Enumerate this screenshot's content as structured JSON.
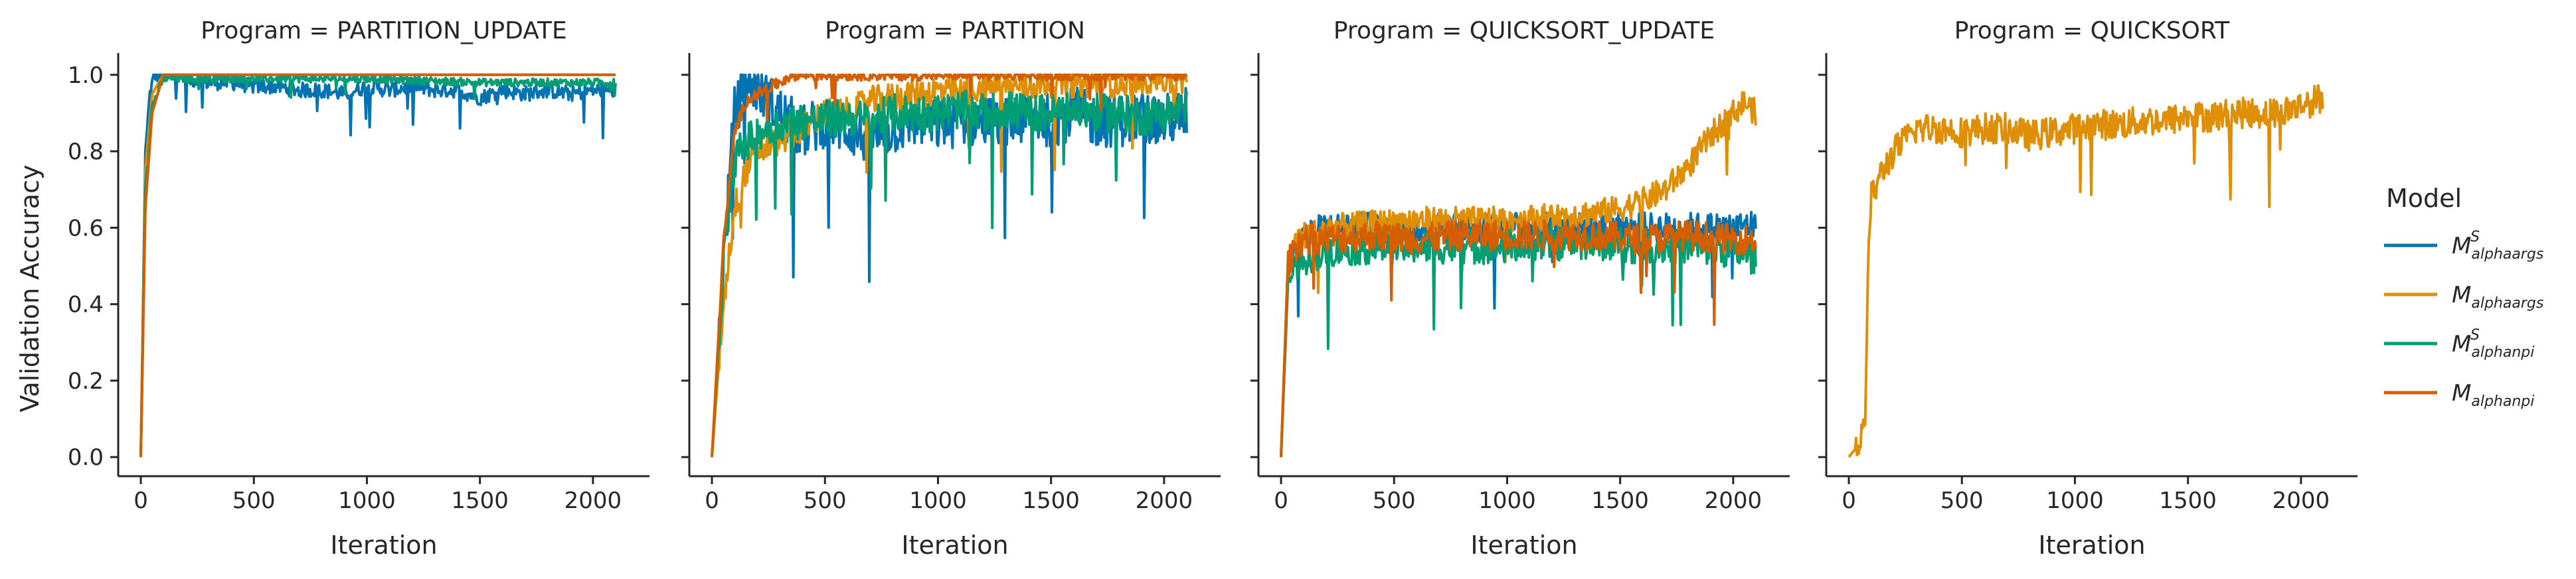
{
  "chart_data": {
    "type": "line",
    "ylabel": "Validation Accuracy",
    "xlabel": "Iteration",
    "xlim": [
      -100,
      2250
    ],
    "ylim": [
      -0.05,
      1.05
    ],
    "xticks": [
      0,
      500,
      1000,
      1500,
      2000
    ],
    "yticks": [
      "0.0",
      "0.2",
      "0.4",
      "0.6",
      "0.8",
      "1.0"
    ],
    "legend": {
      "title": "Model",
      "placement": "right",
      "entries": [
        {
          "main": "M",
          "sub": "alphaargs",
          "sup": "S",
          "color": "#0173b2"
        },
        {
          "main": "M",
          "sub": "alphaargs",
          "sup": "",
          "color": "#de8f05"
        },
        {
          "main": "M",
          "sub": "alphanpi",
          "sup": "S",
          "color": "#029e73"
        },
        {
          "main": "M",
          "sub": "alphanpi",
          "sup": "",
          "color": "#d55e00"
        }
      ]
    },
    "panels": [
      {
        "title": "Program = PARTITION_UPDATE",
        "series": [
          {
            "name": "M^S_alphaargs",
            "color": "#0173b2",
            "x": [
              0,
              20,
              40,
              60,
              100,
              200,
              300,
              400,
              500,
              600,
              700,
              800,
              900,
              1000,
              1100,
              1200,
              1300,
              1400,
              1500,
              1600,
              1700,
              1800,
              1900,
              2000,
              2100
            ],
            "y": [
              0.0,
              0.8,
              0.95,
              1.0,
              1.0,
              0.99,
              0.98,
              0.98,
              0.97,
              0.97,
              0.96,
              0.96,
              0.95,
              0.97,
              0.96,
              0.97,
              0.96,
              0.96,
              0.94,
              0.96,
              0.95,
              0.96,
              0.95,
              0.96,
              0.96
            ],
            "noise": 0.02
          },
          {
            "name": "M_alphaargs",
            "color": "#de8f05",
            "x": [
              0,
              20,
              50,
              100,
              200,
              2100
            ],
            "y": [
              0.0,
              0.75,
              0.95,
              1.0,
              1.0,
              1.0
            ],
            "noise": 0.0
          },
          {
            "name": "M^S_alphanpi",
            "color": "#029e73",
            "x": [
              0,
              20,
              50,
              100,
              200,
              500,
              1000,
              1500,
              2100
            ],
            "y": [
              0.0,
              0.7,
              0.92,
              0.99,
              0.99,
              0.99,
              0.99,
              0.98,
              0.98
            ],
            "noise": 0.01
          },
          {
            "name": "M_alphanpi",
            "color": "#d55e00",
            "x": [
              0,
              20,
              50,
              100,
              200,
              2100
            ],
            "y": [
              0.0,
              0.65,
              0.9,
              1.0,
              1.0,
              1.0
            ],
            "noise": 0.0
          }
        ]
      },
      {
        "title": "Program = PARTITION",
        "series": [
          {
            "name": "M^S_alphaargs",
            "color": "#0173b2",
            "x": [
              0,
              50,
              100,
              150,
              200,
              300,
              400,
              500,
              600,
              700,
              800,
              900,
              1000,
              1100,
              1200,
              1300,
              1400,
              1500,
              1600,
              1700,
              1800,
              1900,
              2000,
              2100
            ],
            "y": [
              0.0,
              0.5,
              0.9,
              0.98,
              0.97,
              0.9,
              0.85,
              0.88,
              0.86,
              0.83,
              0.86,
              0.88,
              0.87,
              0.88,
              0.88,
              0.87,
              0.89,
              0.88,
              0.9,
              0.88,
              0.88,
              0.89,
              0.88,
              0.9
            ],
            "noise": 0.07
          },
          {
            "name": "M_alphaargs",
            "color": "#de8f05",
            "x": [
              0,
              50,
              100,
              150,
              200,
              300,
              400,
              500,
              600,
              700,
              800,
              900,
              1000,
              1100,
              1200,
              1300,
              1400,
              1500,
              1600,
              1700,
              1800,
              1900,
              2000,
              2100
            ],
            "y": [
              0.0,
              0.4,
              0.65,
              0.75,
              0.8,
              0.83,
              0.86,
              0.9,
              0.9,
              0.93,
              0.94,
              0.95,
              0.96,
              0.95,
              0.97,
              0.97,
              0.97,
              0.98,
              0.98,
              0.98,
              0.98,
              0.99,
              0.99,
              0.97
            ],
            "noise": 0.04
          },
          {
            "name": "M^S_alphanpi",
            "color": "#029e73",
            "x": [
              0,
              50,
              100,
              150,
              200,
              300,
              400,
              500,
              600,
              700,
              800,
              900,
              1000,
              1100,
              1200,
              1300,
              1400,
              1500,
              1600,
              1700,
              1800,
              1900,
              2000,
              2100
            ],
            "y": [
              0.0,
              0.5,
              0.78,
              0.82,
              0.85,
              0.87,
              0.88,
              0.88,
              0.89,
              0.88,
              0.9,
              0.9,
              0.9,
              0.91,
              0.9,
              0.91,
              0.9,
              0.9,
              0.91,
              0.9,
              0.9,
              0.89,
              0.9,
              0.91
            ],
            "noise": 0.05
          },
          {
            "name": "M_alphanpi",
            "color": "#d55e00",
            "x": [
              0,
              50,
              100,
              150,
              200,
              300,
              350,
              2100
            ],
            "y": [
              0.0,
              0.55,
              0.85,
              0.93,
              0.95,
              0.98,
              1.0,
              1.0
            ],
            "noise": 0.015
          }
        ]
      },
      {
        "title": "Program = QUICKSORT_UPDATE",
        "series": [
          {
            "name": "M^S_alphaargs",
            "color": "#0173b2",
            "x": [
              0,
              30,
              60,
              100,
              200,
              400,
              600,
              800,
              1000,
              1200,
              1400,
              1600,
              1800,
              2000,
              2100
            ],
            "y": [
              0.0,
              0.5,
              0.58,
              0.58,
              0.6,
              0.6,
              0.6,
              0.6,
              0.6,
              0.6,
              0.6,
              0.6,
              0.6,
              0.6,
              0.61
            ],
            "noise": 0.04
          },
          {
            "name": "M_alphaargs",
            "color": "#de8f05",
            "x": [
              0,
              30,
              60,
              100,
              200,
              400,
              600,
              800,
              1000,
              1200,
              1400,
              1500,
              1600,
              1700,
              1800,
              1900,
              2000,
              2050,
              2100
            ],
            "y": [
              0.0,
              0.5,
              0.56,
              0.58,
              0.6,
              0.61,
              0.62,
              0.62,
              0.62,
              0.63,
              0.64,
              0.65,
              0.67,
              0.7,
              0.76,
              0.84,
              0.9,
              0.93,
              0.9
            ],
            "noise": 0.035
          },
          {
            "name": "M^S_alphanpi",
            "color": "#029e73",
            "x": [
              0,
              30,
              60,
              100,
              200,
              400,
              600,
              800,
              1000,
              1200,
              1400,
              1600,
              1800,
              2000,
              2100
            ],
            "y": [
              0.0,
              0.45,
              0.5,
              0.52,
              0.54,
              0.55,
              0.55,
              0.55,
              0.55,
              0.56,
              0.56,
              0.55,
              0.55,
              0.54,
              0.52
            ],
            "noise": 0.045
          },
          {
            "name": "M_alphanpi",
            "color": "#d55e00",
            "x": [
              0,
              30,
              60,
              100,
              200,
              400,
              600,
              800,
              1000,
              1200,
              1400,
              1600,
              1800,
              2000,
              2100
            ],
            "y": [
              0.0,
              0.5,
              0.55,
              0.57,
              0.57,
              0.58,
              0.57,
              0.58,
              0.58,
              0.58,
              0.58,
              0.57,
              0.58,
              0.57,
              0.57
            ],
            "noise": 0.04
          }
        ]
      },
      {
        "title": "Program = QUICKSORT",
        "series": [
          {
            "name": "M_alphaargs",
            "color": "#de8f05",
            "x": [
              0,
              40,
              70,
              90,
              100,
              150,
              200,
              300,
              400,
              500,
              600,
              700,
              800,
              900,
              1000,
              1100,
              1200,
              1300,
              1400,
              1500,
              1600,
              1700,
              1800,
              1900,
              2000,
              2100
            ],
            "y": [
              0.0,
              0.03,
              0.07,
              0.6,
              0.68,
              0.75,
              0.8,
              0.86,
              0.86,
              0.85,
              0.86,
              0.86,
              0.84,
              0.85,
              0.86,
              0.87,
              0.87,
              0.88,
              0.88,
              0.89,
              0.89,
              0.9,
              0.9,
              0.9,
              0.92,
              0.94
            ],
            "noise": 0.04
          }
        ]
      }
    ]
  }
}
